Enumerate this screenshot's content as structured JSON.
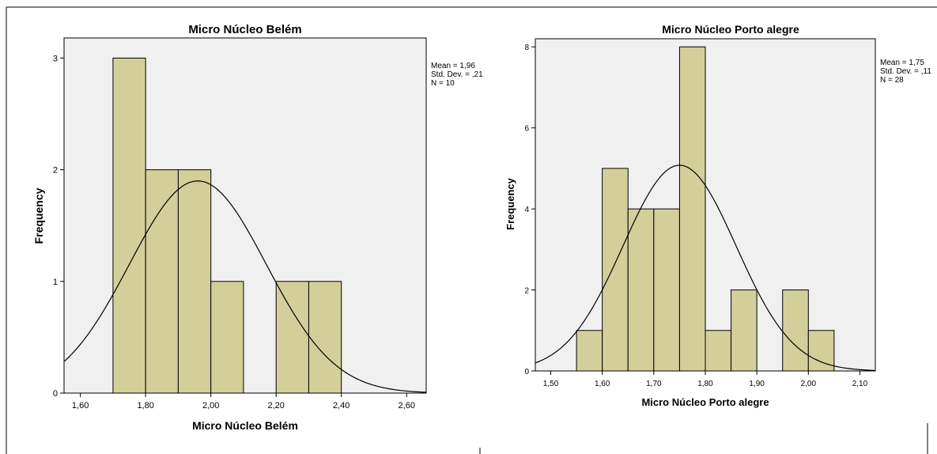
{
  "chart_data": [
    {
      "type": "bar",
      "title": "Micro Núcleo Belém",
      "xlabel": "Micro Núcleo Belém",
      "ylabel": "Frequency",
      "bin_edges": [
        1.7,
        1.8,
        1.9,
        2.0,
        2.1,
        2.2,
        2.3,
        2.4
      ],
      "values": [
        3,
        2,
        2,
        1,
        0,
        1,
        1
      ],
      "xlim": [
        1.55,
        2.66
      ],
      "ylim": [
        0,
        3.18
      ],
      "x_ticks": [
        1.6,
        1.8,
        2.0,
        2.2,
        2.4,
        2.6
      ],
      "x_tick_labels": [
        "1,60",
        "1,80",
        "2,00",
        "2,20",
        "2,40",
        "2,60"
      ],
      "y_ticks": [
        0,
        1,
        2,
        3
      ],
      "y_tick_labels": [
        "0",
        "1",
        "2",
        "3"
      ],
      "normal_curve": {
        "mean": 1.96,
        "std": 0.21,
        "n": 10,
        "bin_width": 0.1
      },
      "stats_lines": [
        "Mean = 1,96",
        "Std. Dev. = ,21",
        "N = 10"
      ],
      "grid": false,
      "legend": "right",
      "colors": {
        "bar": "#d3cf9a",
        "plot_bg": "#f0f0f0",
        "line": "#000000"
      }
    },
    {
      "type": "bar",
      "title": "Micro Núcleo Porto alegre",
      "xlabel": "Micro Núcleo Porto alegre",
      "ylabel": "Frequency",
      "bin_edges": [
        1.55,
        1.6,
        1.65,
        1.7,
        1.75,
        1.8,
        1.85,
        1.9,
        1.95,
        2.0,
        2.05
      ],
      "values": [
        1,
        5,
        4,
        4,
        8,
        1,
        2,
        0,
        2,
        1
      ],
      "xlim": [
        1.47,
        2.13
      ],
      "ylim": [
        0,
        8.2
      ],
      "x_ticks": [
        1.5,
        1.6,
        1.7,
        1.8,
        1.9,
        2.0,
        2.1
      ],
      "x_tick_labels": [
        "1,50",
        "1,60",
        "1,70",
        "1,80",
        "1,90",
        "2,00",
        "2,10"
      ],
      "y_ticks": [
        0,
        2,
        4,
        6,
        8
      ],
      "y_tick_labels": [
        "0",
        "2",
        "4",
        "6",
        "8"
      ],
      "normal_curve": {
        "mean": 1.75,
        "std": 0.11,
        "n": 28,
        "bin_width": 0.05
      },
      "stats_lines": [
        "Mean = 1,75",
        "Std. Dev. = ,11",
        "N = 28"
      ],
      "grid": false,
      "legend": "right",
      "colors": {
        "bar": "#d3cf9a",
        "plot_bg": "#f0f0f0",
        "line": "#000000"
      }
    }
  ]
}
